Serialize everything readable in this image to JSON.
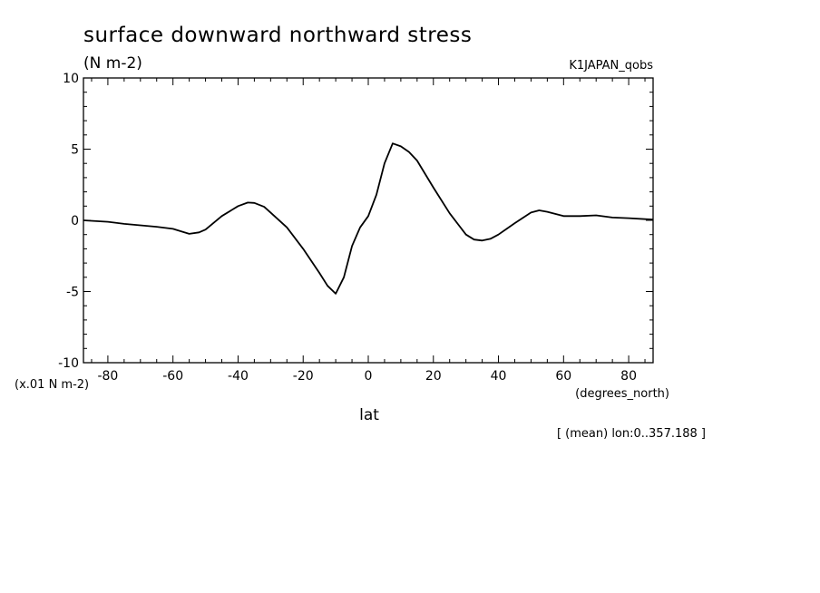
{
  "chart_data": {
    "type": "line",
    "title": "surface downward northward stress",
    "units": "(N m-2)",
    "dataset": "K1JAPAN_qobs",
    "xlabel": "lat",
    "xunits": "(degrees_north)",
    "yscale_label": "(x.01 N m-2)",
    "footnote": "[ (mean) lon:0..357.188 ]",
    "xlim": [
      -87.5,
      87.5
    ],
    "ylim": [
      -10,
      10
    ],
    "xticks": [
      -80,
      -60,
      -40,
      -20,
      0,
      20,
      40,
      60,
      80
    ],
    "xtick_labels": [
      "-80",
      "-60",
      "-40",
      "-20",
      "0",
      "20",
      "40",
      "60",
      "80"
    ],
    "yticks": [
      -10,
      -5,
      0,
      5,
      10
    ],
    "ytick_labels": [
      "-10",
      "-5",
      "0",
      "5",
      "10"
    ],
    "grid": false,
    "series": [
      {
        "x": [
          -87.5,
          -80,
          -75,
          -70,
          -65,
          -60,
          -55,
          -52,
          -50,
          -45,
          -40,
          -37,
          -35,
          -32,
          -30,
          -25,
          -20,
          -15,
          -12.5,
          -10,
          -7.5,
          -5,
          -2.5,
          0,
          2.5,
          5,
          7.5,
          10,
          12.5,
          15,
          20,
          25,
          30,
          32.5,
          35,
          37.5,
          40,
          45,
          50,
          52.5,
          55,
          60,
          65,
          70,
          75,
          80,
          87.5
        ],
        "y": [
          0.0,
          -0.1,
          -0.25,
          -0.35,
          -0.45,
          -0.6,
          -0.95,
          -0.85,
          -0.65,
          0.3,
          1.0,
          1.25,
          1.22,
          0.95,
          0.55,
          -0.5,
          -2.0,
          -3.7,
          -4.6,
          -5.15,
          -4.0,
          -1.8,
          -0.5,
          0.3,
          1.8,
          4.0,
          5.4,
          5.2,
          4.8,
          4.2,
          2.3,
          0.5,
          -1.0,
          -1.35,
          -1.42,
          -1.3,
          -1.0,
          -0.2,
          0.55,
          0.7,
          0.6,
          0.3,
          0.3,
          0.35,
          0.2,
          0.15,
          0.05
        ]
      }
    ]
  }
}
